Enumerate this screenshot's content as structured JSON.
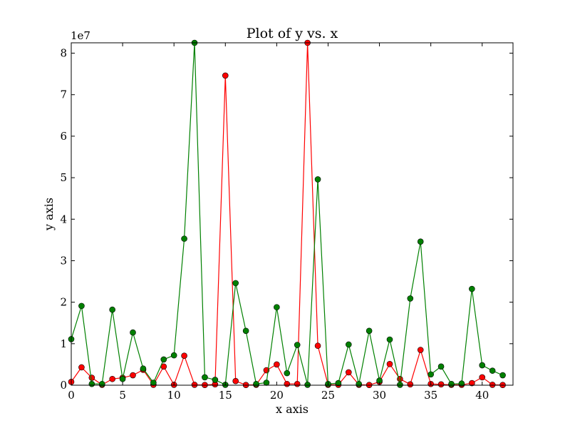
{
  "chart_data": {
    "type": "line",
    "title": "Plot of y vs. x",
    "xlabel": "x axis",
    "ylabel": "y axis",
    "y_multiplier_label": "1e7",
    "y_scale": 10000000,
    "xlim": [
      0,
      43
    ],
    "ylim": [
      0,
      82500000
    ],
    "x_ticks": [
      0,
      5,
      10,
      15,
      20,
      25,
      30,
      35,
      40
    ],
    "y_ticks": [
      0,
      10000000,
      20000000,
      30000000,
      40000000,
      50000000,
      60000000,
      70000000,
      80000000
    ],
    "y_tick_labels": [
      "0",
      "1",
      "2",
      "3",
      "4",
      "5",
      "6",
      "7",
      "8"
    ],
    "grid": false,
    "legend": "none",
    "marker": "circle",
    "series": [
      {
        "color": "#ff0000",
        "x": [
          0,
          1,
          2,
          3,
          4,
          5,
          6,
          7,
          8,
          9,
          10,
          11,
          12,
          13,
          14,
          15,
          16,
          17,
          18,
          19,
          20,
          21,
          22,
          23,
          24,
          25,
          26,
          27,
          28,
          29,
          30,
          31,
          32,
          33,
          34,
          35,
          36,
          37,
          38,
          39,
          40,
          41,
          42
        ],
        "values": [
          800000,
          4300000,
          1800000,
          100000,
          1500000,
          1800000,
          2400000,
          3700000,
          100000,
          4500000,
          100000,
          7100000,
          100000,
          50000,
          200000,
          74600000,
          1000000,
          50000,
          100000,
          3600000,
          5000000,
          300000,
          300000,
          82500000,
          9500000,
          100000,
          100000,
          3100000,
          100000,
          50000,
          800000,
          5100000,
          1500000,
          200000,
          8500000,
          300000,
          200000,
          100000,
          100000,
          500000,
          1900000,
          100000,
          50000
        ]
      },
      {
        "color": "#008000",
        "x": [
          0,
          1,
          2,
          3,
          4,
          5,
          6,
          7,
          8,
          9,
          10,
          11,
          12,
          13,
          14,
          15,
          16,
          17,
          18,
          19,
          20,
          21,
          22,
          23,
          24,
          25,
          26,
          27,
          28,
          29,
          30,
          31,
          32,
          33,
          34,
          35,
          36,
          37,
          38,
          39,
          40,
          41,
          42
        ],
        "values": [
          11100000,
          19100000,
          300000,
          300000,
          18200000,
          1500000,
          12700000,
          4000000,
          600000,
          6200000,
          7200000,
          35300000,
          82500000,
          1900000,
          1300000,
          100000,
          24600000,
          13100000,
          300000,
          600000,
          18800000,
          2900000,
          9700000,
          100000,
          49600000,
          300000,
          500000,
          9800000,
          300000,
          13100000,
          1100000,
          11000000,
          100000,
          20900000,
          34600000,
          2600000,
          4500000,
          300000,
          400000,
          23200000,
          4800000,
          3500000,
          2400000
        ]
      }
    ]
  }
}
